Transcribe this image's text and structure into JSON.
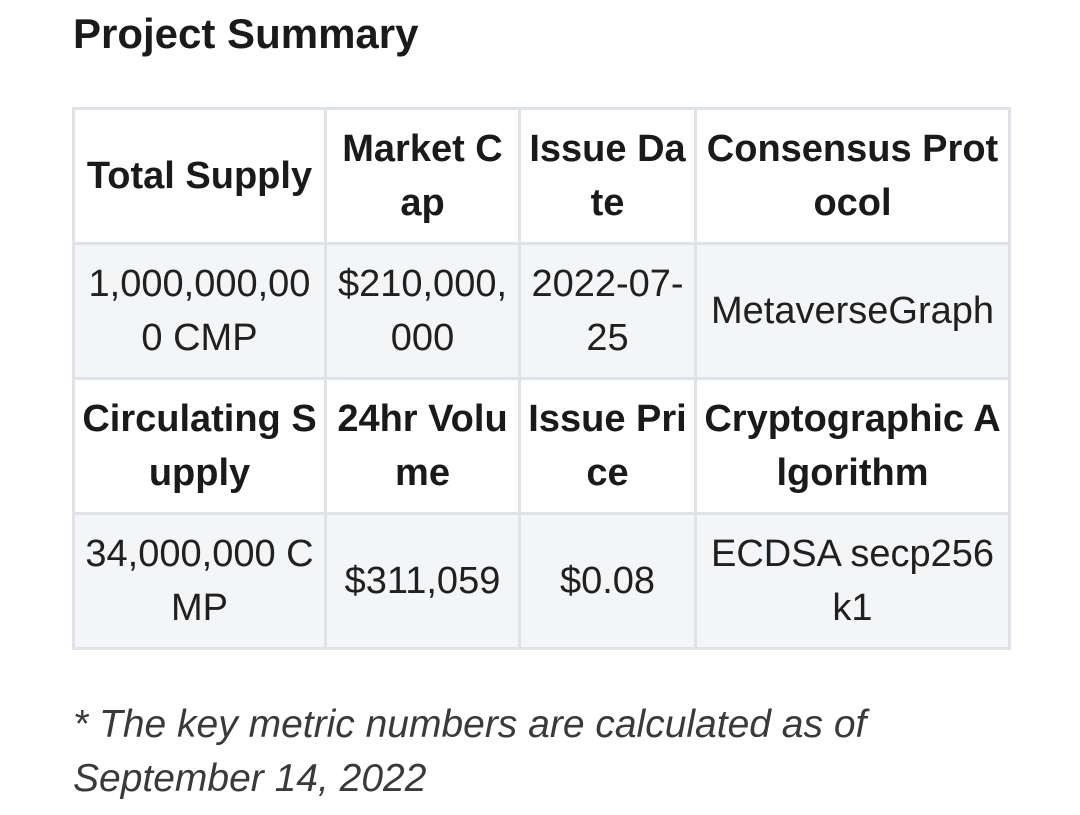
{
  "title": "Project Summary",
  "table": {
    "rows": [
      {
        "kind": "header",
        "cells": [
          "Total Supply",
          "Market Cap",
          "Issue Date",
          "Consensus Protocol"
        ]
      },
      {
        "kind": "value",
        "cells": [
          "1,000,000,000 CMP",
          "$210,000,000",
          "2022-07-25",
          "MetaverseGraph"
        ]
      },
      {
        "kind": "header",
        "cells": [
          "Circulating Supply",
          "24hr Volume",
          "Issue Price",
          "Cryptographic Algorithm"
        ]
      },
      {
        "kind": "value",
        "cells": [
          "34,000,000 CMP",
          "$311,059",
          "$0.08",
          "ECDSA secp256k1"
        ]
      }
    ]
  },
  "footnote": "* The key metric numbers are calculated as of September 14, 2022"
}
